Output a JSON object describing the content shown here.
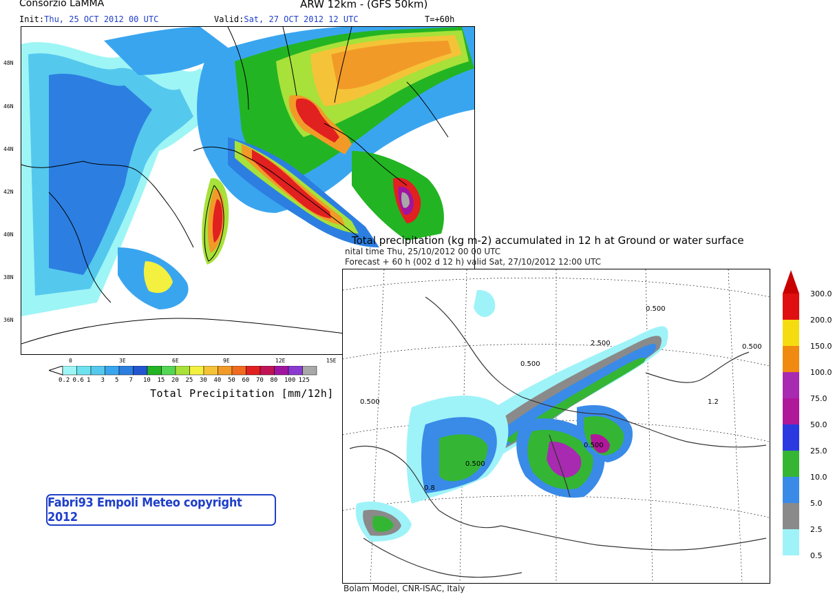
{
  "lamma": {
    "header_left_title": "Consorzio LaMMA",
    "header_right_title": "ARW 12km - (GFS 50km)",
    "init_label": "Init:",
    "init_value": "Thu, 25 OCT 2012  00 UTC",
    "valid_label": "Valid:",
    "valid_value": "Sat, 27 OCT 2012  12 UTC",
    "lead_time": "T=+60h",
    "lat_labels": [
      "48N",
      "46N",
      "44N",
      "42N",
      "40N",
      "38N",
      "36N"
    ],
    "lon_labels": [
      "0",
      "3E",
      "6E",
      "9E",
      "12E",
      "15E"
    ],
    "colorbar": {
      "title": "Total Precipitation [mm/12h]",
      "values": [
        "0.2",
        "0.6",
        "1",
        "3",
        "5",
        "7",
        "10",
        "15",
        "20",
        "25",
        "30",
        "40",
        "50",
        "60",
        "70",
        "80",
        "100",
        "125"
      ],
      "colors": [
        "#ffffff",
        "#9ef5f5",
        "#6fe2ef",
        "#55c8ee",
        "#3aa5ef",
        "#2c7fe0",
        "#2255d0",
        "#23b423",
        "#53d653",
        "#a7e13a",
        "#f3f040",
        "#f5c338",
        "#f29a28",
        "#f06a20",
        "#e12020",
        "#c01455",
        "#a015a0",
        "#8a3ad0",
        "#a8a8a8"
      ]
    }
  },
  "copyright": "Fabri93 Empoli Meteo copyright 2012",
  "bolam": {
    "title": "Total precipitation (kg m-2) accumulated in  12 h at Ground or water surface",
    "initial_time": "nital time  Thu, 25/10/2012  00 00 UTC",
    "forecast": "Forecast  +  60 h  (002 d 12 h)  valid Sat, 27/10/2012 12:00 UTC",
    "credit": "Bolam Model, CNR-ISAC, Italy",
    "contour_labels": [
      "0.500",
      "2.500",
      "0.500",
      "0.500",
      "0.500",
      "0.500",
      "0.500",
      "1.2",
      "0.8"
    ],
    "colorbar": {
      "values": [
        "300.0",
        "200.0",
        "150.0",
        "100.0",
        "75.0",
        "50.0",
        "25.0",
        "10.0",
        "5.0",
        "2.5",
        "0.5"
      ],
      "colors": [
        "#e01010",
        "#f5dc10",
        "#f08a10",
        "#a82ab0",
        "#b0189a",
        "#2a3ae0",
        "#34b634",
        "#3a8ae8",
        "#8a8a8a",
        "#9ef3f8"
      ],
      "arrow_color": "#c80000"
    }
  }
}
